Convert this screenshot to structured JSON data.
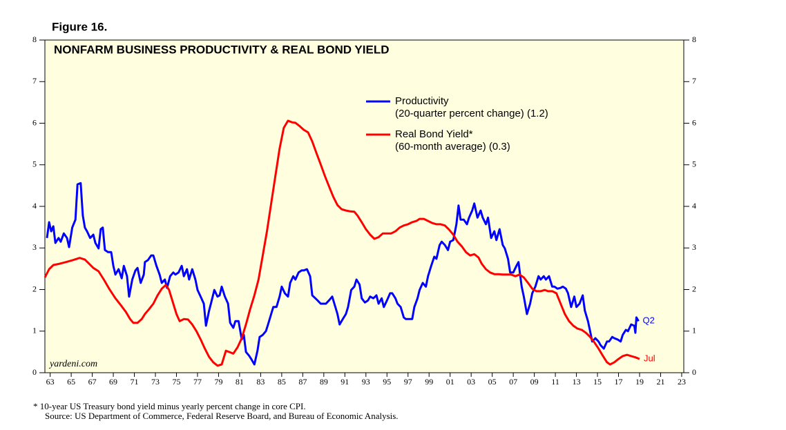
{
  "chart_data": {
    "type": "line",
    "figure_label": "Figure 16.",
    "title": "NONFARM BUSINESS PRODUCTIVITY & REAL BOND YIELD",
    "watermark": "yardeni.com",
    "footnote": "*  10-year US Treasury bond yield minus yearly percent change in core CPI.",
    "source": "Source: US Department of Commerce, Federal Reserve Board, and Bureau of Economic Analysis.",
    "xlim": [
      1962.5,
      2023.2
    ],
    "xticks": [
      {
        "value": 1963,
        "label": "63"
      },
      {
        "value": 1965,
        "label": "65"
      },
      {
        "value": 1967,
        "label": "67"
      },
      {
        "value": 1969,
        "label": "69"
      },
      {
        "value": 1971,
        "label": "71"
      },
      {
        "value": 1973,
        "label": "73"
      },
      {
        "value": 1975,
        "label": "75"
      },
      {
        "value": 1977,
        "label": "77"
      },
      {
        "value": 1979,
        "label": "79"
      },
      {
        "value": 1981,
        "label": "81"
      },
      {
        "value": 1983,
        "label": "83"
      },
      {
        "value": 1985,
        "label": "85"
      },
      {
        "value": 1987,
        "label": "87"
      },
      {
        "value": 1989,
        "label": "89"
      },
      {
        "value": 1991,
        "label": "91"
      },
      {
        "value": 1993,
        "label": "93"
      },
      {
        "value": 1995,
        "label": "95"
      },
      {
        "value": 1997,
        "label": "97"
      },
      {
        "value": 1999,
        "label": "99"
      },
      {
        "value": 2001,
        "label": "01"
      },
      {
        "value": 2003,
        "label": "03"
      },
      {
        "value": 2005,
        "label": "05"
      },
      {
        "value": 2007,
        "label": "07"
      },
      {
        "value": 2009,
        "label": "09"
      },
      {
        "value": 2011,
        "label": "11"
      },
      {
        "value": 2013,
        "label": "13"
      },
      {
        "value": 2015,
        "label": "15"
      },
      {
        "value": 2017,
        "label": "17"
      },
      {
        "value": 2019,
        "label": "19"
      },
      {
        "value": 2021,
        "label": "21"
      },
      {
        "value": 2023,
        "label": "23"
      }
    ],
    "ylim": [
      0,
      8
    ],
    "yticks": [
      0,
      1,
      2,
      3,
      4,
      5,
      6,
      7,
      8
    ],
    "background": "#ffffe0",
    "series": [
      {
        "name": "Productivity",
        "note": "(20-quarter percent change) (1.2)",
        "color": "#0000ff",
        "end_label": "Q2",
        "x": [
          1962.7,
          1962.9,
          1963.1,
          1963.3,
          1963.5,
          1963.8,
          1964.0,
          1964.3,
          1964.6,
          1964.8,
          1965.1,
          1965.4,
          1965.6,
          1965.9,
          1966.1,
          1966.3,
          1966.5,
          1966.8,
          1967.1,
          1967.3,
          1967.6,
          1967.8,
          1968.0,
          1968.2,
          1968.5,
          1968.8,
          1969.0,
          1969.2,
          1969.5,
          1969.8,
          1970.0,
          1970.3,
          1970.5,
          1970.8,
          1971.1,
          1971.3,
          1971.6,
          1971.9,
          1972.0,
          1972.3,
          1972.6,
          1972.8,
          1973.1,
          1973.4,
          1973.6,
          1973.9,
          1974.1,
          1974.4,
          1974.7,
          1974.9,
          1975.2,
          1975.5,
          1975.7,
          1976.0,
          1976.2,
          1976.5,
          1976.8,
          1977.0,
          1977.3,
          1977.6,
          1977.8,
          1978.1,
          1978.3,
          1978.6,
          1978.9,
          1979.1,
          1979.3,
          1979.6,
          1979.9,
          1980.1,
          1980.4,
          1980.6,
          1980.9,
          1981.2,
          1981.4,
          1981.6,
          1981.9,
          1982.1,
          1982.4,
          1982.7,
          1982.9,
          1983.2,
          1983.5,
          1983.7,
          1984.0,
          1984.2,
          1984.5,
          1984.8,
          1985.0,
          1985.3,
          1985.6,
          1985.8,
          1986.1,
          1986.3,
          1986.6,
          1986.9,
          1987.1,
          1987.4,
          1987.7,
          1987.9,
          1988.2,
          1988.4,
          1988.7,
          1989.0,
          1989.2,
          1989.5,
          1989.8,
          1990.0,
          1990.3,
          1990.5,
          1990.8,
          1991.1,
          1991.3,
          1991.6,
          1991.9,
          1992.1,
          1992.4,
          1992.6,
          1992.9,
          1993.2,
          1993.4,
          1993.7,
          1994.0,
          1994.2,
          1994.5,
          1994.7,
          1995.0,
          1995.3,
          1995.5,
          1995.8,
          1996.0,
          1996.3,
          1996.6,
          1996.8,
          1997.1,
          1997.4,
          1997.6,
          1997.9,
          1998.1,
          1998.4,
          1998.7,
          1998.9,
          1999.2,
          1999.5,
          1999.7,
          2000.0,
          2000.2,
          2000.5,
          2000.8,
          2001.0,
          2001.3,
          2001.6,
          2001.8,
          2002.0,
          2002.3,
          2002.6,
          2002.8,
          2003.1,
          2003.3,
          2003.6,
          2003.9,
          2004.1,
          2004.4,
          2004.6,
          2004.9,
          2005.2,
          2005.4,
          2005.7,
          2006.0,
          2006.2,
          2006.5,
          2006.7,
          2007.0,
          2007.3,
          2007.5,
          2007.8,
          2008.0,
          2008.3,
          2008.6,
          2008.8,
          2009.1,
          2009.4,
          2009.6,
          2009.9,
          2010.1,
          2010.4,
          2010.7,
          2010.9,
          2011.2,
          2011.5,
          2011.7,
          2012.0,
          2012.2,
          2012.5,
          2012.8,
          2013.0,
          2013.3,
          2013.6,
          2013.8,
          2014.1,
          2014.3,
          2014.5,
          2014.8,
          2015.1,
          2015.3,
          2015.6,
          2015.9,
          2016.1,
          2016.4,
          2016.6,
          2016.9,
          2017.2,
          2017.4,
          2017.7,
          2017.9,
          2018.2,
          2018.5,
          2018.6,
          2018.7,
          2018.9
        ],
        "values": [
          3.24,
          3.62,
          3.4,
          3.52,
          3.12,
          3.24,
          3.15,
          3.35,
          3.24,
          3.02,
          3.49,
          3.68,
          4.53,
          4.56,
          3.78,
          3.49,
          3.4,
          3.24,
          3.32,
          3.12,
          2.99,
          3.45,
          3.49,
          2.95,
          2.9,
          2.9,
          2.57,
          2.36,
          2.49,
          2.27,
          2.57,
          2.32,
          1.83,
          2.24,
          2.46,
          2.52,
          2.16,
          2.36,
          2.66,
          2.71,
          2.82,
          2.82,
          2.57,
          2.36,
          2.16,
          2.24,
          2.04,
          2.32,
          2.41,
          2.36,
          2.41,
          2.57,
          2.32,
          2.49,
          2.24,
          2.49,
          2.24,
          1.99,
          1.83,
          1.66,
          1.13,
          1.49,
          1.69,
          1.99,
          1.83,
          1.86,
          2.07,
          1.83,
          1.66,
          1.2,
          1.08,
          1.24,
          1.24,
          0.8,
          0.91,
          0.5,
          0.41,
          0.33,
          0.2,
          0.53,
          0.86,
          0.91,
          1.0,
          1.16,
          1.41,
          1.58,
          1.58,
          1.83,
          2.07,
          1.91,
          1.83,
          2.16,
          2.32,
          2.24,
          2.41,
          2.46,
          2.46,
          2.49,
          2.32,
          1.86,
          1.79,
          1.74,
          1.66,
          1.66,
          1.66,
          1.74,
          1.83,
          1.66,
          1.41,
          1.16,
          1.29,
          1.41,
          1.58,
          1.99,
          2.07,
          2.24,
          2.12,
          1.79,
          1.69,
          1.74,
          1.83,
          1.79,
          1.86,
          1.66,
          1.79,
          1.58,
          1.74,
          1.91,
          1.91,
          1.79,
          1.66,
          1.58,
          1.33,
          1.29,
          1.29,
          1.29,
          1.58,
          1.79,
          1.99,
          2.16,
          2.07,
          2.32,
          2.57,
          2.79,
          2.74,
          3.07,
          3.15,
          3.07,
          2.95,
          3.15,
          3.19,
          3.57,
          4.02,
          3.68,
          3.68,
          3.57,
          3.73,
          3.9,
          4.07,
          3.73,
          3.9,
          3.73,
          3.57,
          3.73,
          3.24,
          3.4,
          3.19,
          3.45,
          3.07,
          2.99,
          2.74,
          2.41,
          2.41,
          2.57,
          2.66,
          2.07,
          1.83,
          1.41,
          1.66,
          1.91,
          2.07,
          2.32,
          2.24,
          2.32,
          2.24,
          2.32,
          2.07,
          2.07,
          2.02,
          2.04,
          2.07,
          2.02,
          1.91,
          1.58,
          1.83,
          1.58,
          1.66,
          1.86,
          1.49,
          1.24,
          1.0,
          0.75,
          0.83,
          0.75,
          0.66,
          0.58,
          0.75,
          0.75,
          0.86,
          0.83,
          0.8,
          0.75,
          0.91,
          1.03,
          1.0,
          1.16,
          1.13,
          0.96,
          1.33,
          1.24
        ]
      },
      {
        "name": "Real Bond Yield*",
        "note": "(60-month average) (0.3)",
        "color": "#ff0000",
        "end_label": "Jul",
        "x": [
          1962.5,
          1962.9,
          1963.3,
          1963.9,
          1964.5,
          1965.2,
          1965.8,
          1966.3,
          1966.7,
          1967.1,
          1967.6,
          1968.1,
          1968.6,
          1969.2,
          1969.7,
          1970.2,
          1970.6,
          1970.9,
          1971.3,
          1971.7,
          1972.0,
          1972.4,
          1972.8,
          1973.2,
          1973.6,
          1974.0,
          1974.3,
          1974.7,
          1975.0,
          1975.3,
          1975.7,
          1976.1,
          1976.5,
          1976.9,
          1977.3,
          1977.7,
          1978.1,
          1978.5,
          1978.9,
          1979.3,
          1979.7,
          1980.0,
          1980.4,
          1980.8,
          1981.2,
          1981.6,
          1982.0,
          1982.4,
          1982.8,
          1983.2,
          1983.6,
          1984.0,
          1984.4,
          1984.8,
          1985.2,
          1985.6,
          1986.0,
          1986.3,
          1986.7,
          1987.1,
          1987.5,
          1987.9,
          1988.3,
          1988.7,
          1989.1,
          1989.5,
          1989.9,
          1990.3,
          1990.7,
          1991.1,
          1991.5,
          1991.9,
          1992.2,
          1992.6,
          1993.0,
          1993.4,
          1993.8,
          1994.2,
          1994.6,
          1995.0,
          1995.4,
          1995.8,
          1996.2,
          1996.6,
          1997.0,
          1997.4,
          1997.8,
          1998.1,
          1998.5,
          1998.9,
          1999.3,
          1999.7,
          2000.1,
          2000.5,
          2000.9,
          2001.3,
          2001.7,
          2002.1,
          2002.5,
          2002.9,
          2003.3,
          2003.7,
          2004.0,
          2004.4,
          2004.8,
          2005.2,
          2005.6,
          2006.0,
          2006.4,
          2006.8,
          2007.2,
          2007.6,
          2008.0,
          2008.4,
          2008.8,
          2009.2,
          2009.6,
          2010.0,
          2010.3,
          2010.7,
          2011.1,
          2011.5,
          2011.9,
          2012.3,
          2012.7,
          2013.1,
          2013.5,
          2013.9,
          2014.3,
          2014.7,
          2015.1,
          2015.5,
          2015.9,
          2016.2,
          2016.6,
          2017.0,
          2017.4,
          2017.8,
          2018.2,
          2018.6,
          2019.0
        ],
        "values": [
          2.29,
          2.49,
          2.59,
          2.62,
          2.66,
          2.71,
          2.76,
          2.72,
          2.62,
          2.52,
          2.44,
          2.24,
          2.02,
          1.79,
          1.63,
          1.46,
          1.29,
          1.2,
          1.2,
          1.29,
          1.41,
          1.53,
          1.66,
          1.86,
          2.02,
          2.11,
          1.99,
          1.66,
          1.41,
          1.24,
          1.29,
          1.28,
          1.16,
          1.0,
          0.8,
          0.58,
          0.38,
          0.25,
          0.17,
          0.2,
          0.53,
          0.5,
          0.46,
          0.61,
          0.83,
          1.16,
          1.53,
          1.86,
          2.24,
          2.82,
          3.4,
          4.07,
          4.73,
          5.39,
          5.89,
          6.06,
          6.02,
          6.01,
          5.93,
          5.84,
          5.78,
          5.56,
          5.28,
          5.01,
          4.73,
          4.48,
          4.23,
          4.03,
          3.93,
          3.9,
          3.88,
          3.87,
          3.78,
          3.62,
          3.45,
          3.32,
          3.22,
          3.26,
          3.35,
          3.35,
          3.35,
          3.4,
          3.49,
          3.54,
          3.57,
          3.62,
          3.65,
          3.7,
          3.7,
          3.65,
          3.6,
          3.57,
          3.57,
          3.54,
          3.44,
          3.32,
          3.15,
          3.04,
          2.9,
          2.82,
          2.85,
          2.77,
          2.62,
          2.49,
          2.41,
          2.37,
          2.37,
          2.36,
          2.36,
          2.36,
          2.32,
          2.36,
          2.29,
          2.16,
          2.02,
          1.96,
          1.96,
          1.99,
          1.96,
          1.96,
          1.91,
          1.66,
          1.41,
          1.24,
          1.13,
          1.06,
          1.03,
          0.96,
          0.86,
          0.73,
          0.58,
          0.41,
          0.25,
          0.2,
          0.25,
          0.33,
          0.4,
          0.43,
          0.4,
          0.37,
          0.33
        ]
      }
    ]
  }
}
